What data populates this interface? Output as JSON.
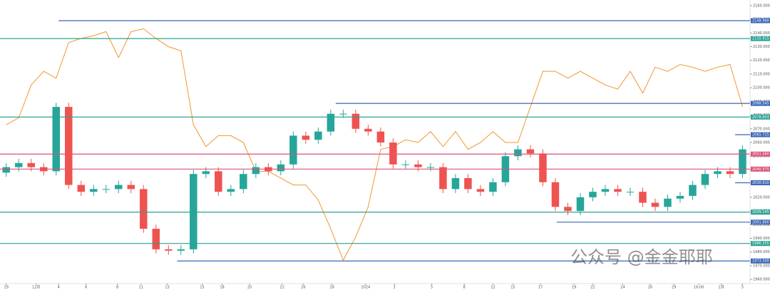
{
  "chart_data": {
    "type": "candlestick",
    "xlim": [
      -0.5,
      59.6
    ],
    "ylim": [
      1958,
      2162
    ],
    "up_color": "#26a69a",
    "down_color": "#ef5350",
    "open": [
      2038,
      2042,
      2045,
      2042,
      2039,
      2086,
      2029,
      2024,
      2026,
      2026,
      2029,
      2026,
      1997,
      1982,
      1981,
      1982,
      2037,
      2039,
      2024,
      2026,
      2037,
      2042,
      2039,
      2044,
      2065,
      2062,
      2068,
      2081,
      2081,
      2070,
      2068,
      2060,
      2044,
      2044,
      2042,
      2042,
      2026,
      2034,
      2026,
      2024,
      2031,
      2050,
      2055,
      2052,
      2031,
      2013,
      2010,
      2020,
      2024,
      2026,
      2024,
      2024,
      2016,
      2013,
      2019,
      2021,
      2029,
      2037,
      2039,
      2037
    ],
    "high": [
      2045,
      2048,
      2048,
      2045,
      2089,
      2089,
      2032,
      2029,
      2029,
      2032,
      2032,
      2029,
      2000,
      1985,
      1985,
      2040,
      2042,
      2042,
      2029,
      2040,
      2045,
      2045,
      2047,
      2068,
      2068,
      2071,
      2084,
      2084,
      2084,
      2073,
      2071,
      2063,
      2047,
      2047,
      2045,
      2045,
      2037,
      2037,
      2029,
      2034,
      2053,
      2058,
      2058,
      2055,
      2034,
      2016,
      2023,
      2027,
      2029,
      2029,
      2027,
      2027,
      2019,
      2022,
      2024,
      2032,
      2040,
      2042,
      2042,
      2058
    ],
    "low": [
      2035,
      2039,
      2039,
      2036,
      2036,
      2026,
      2021,
      2021,
      2023,
      2023,
      2023,
      1994,
      1979,
      1978,
      1978,
      1979,
      2034,
      2021,
      2021,
      2023,
      2034,
      2036,
      2036,
      2041,
      2059,
      2059,
      2065,
      2078,
      2067,
      2065,
      2057,
      2041,
      2041,
      2039,
      2039,
      2023,
      2023,
      2023,
      2021,
      2021,
      2028,
      2047,
      2049,
      2028,
      2010,
      2007,
      2007,
      2017,
      2021,
      2021,
      2021,
      2013,
      2010,
      2010,
      2016,
      2018,
      2026,
      2034,
      2034,
      2034
    ],
    "close": [
      2042,
      2045,
      2042,
      2039,
      2086,
      2029,
      2024,
      2026,
      2026,
      2029,
      2026,
      1997,
      1982,
      1981,
      1982,
      2037,
      2039,
      2024,
      2026,
      2037,
      2042,
      2039,
      2044,
      2065,
      2062,
      2068,
      2081,
      2081,
      2070,
      2068,
      2060,
      2044,
      2044,
      2042,
      2042,
      2026,
      2034,
      2026,
      2024,
      2031,
      2050,
      2055,
      2052,
      2031,
      2013,
      2010,
      2020,
      2024,
      2026,
      2024,
      2024,
      2016,
      2013,
      2019,
      2021,
      2029,
      2037,
      2039,
      2037,
      2055
    ],
    "overlay_color": "#f0962e",
    "overlay_values": [
      2073,
      2078,
      2102,
      2112,
      2107,
      2133,
      2136,
      2138,
      2141,
      2122,
      2141,
      2143,
      2136,
      2130,
      2127,
      2073,
      2057,
      2065,
      2065,
      2060,
      2039,
      2039,
      2034,
      2029,
      2029,
      2018,
      1997,
      1974,
      1991,
      2013,
      2055,
      2057,
      2062,
      2060,
      2068,
      2057,
      2068,
      2055,
      2060,
      2068,
      2060,
      2060,
      2086,
      2112,
      2112,
      2107,
      2112,
      2107,
      2102,
      2099,
      2112,
      2096,
      2115,
      2112,
      2117,
      2115,
      2112,
      2115,
      2117,
      2086
    ],
    "levels": [
      {
        "value": 2148.99,
        "label": "2148.990",
        "color": "#3a66b8",
        "from": 4.2
      },
      {
        "value": 2135.915,
        "label": "2135.915",
        "color": "#2aa393",
        "from": -0.5
      },
      {
        "value": 2088.545,
        "label": "2088.545",
        "color": "#3a66b8",
        "from": 26.4
      },
      {
        "value": 2078.603,
        "label": "2078.603",
        "color": "#2aa393",
        "from": -0.5
      },
      {
        "value": 2065.725,
        "label": "2065.725",
        "color": "#3a66b8",
        "from": 58.4
      },
      {
        "value": 2051.56,
        "label": "2051.560",
        "color": "#d9547a",
        "from": -0.5
      },
      {
        "value": 2040.575,
        "label": "2040.575",
        "color": "#d9547a",
        "from": -0.5
      },
      {
        "value": 2030.61,
        "label": "2030.610",
        "color": "#3a66b8",
        "from": 58.4
      },
      {
        "value": 2009.145,
        "label": "2009.145",
        "color": "#2aa393",
        "from": -0.5
      },
      {
        "value": 2001.8,
        "label": "2001.800",
        "color": "#3a66b8",
        "from": 44.1
      },
      {
        "value": 1986.255,
        "label": "1986.255",
        "color": "#2aa393",
        "from": -0.5
      },
      {
        "value": 1973.5,
        "label": "1973.500",
        "color": "#3a66b8",
        "from": 13.7
      }
    ],
    "yticks": [
      {
        "value": 2160,
        "label": "2160.000"
      },
      {
        "value": 2150,
        "label": "2150.000"
      },
      {
        "value": 2140,
        "label": "2140.000"
      },
      {
        "value": 2130,
        "label": "2130.000"
      },
      {
        "value": 2120,
        "label": "2120.000"
      },
      {
        "value": 2110,
        "label": "2110.000"
      },
      {
        "value": 2100,
        "label": "2100.000"
      },
      {
        "value": 2090,
        "label": "2090.000"
      },
      {
        "value": 2080,
        "label": "2080.000"
      },
      {
        "value": 2070,
        "label": "2070.000"
      },
      {
        "value": 2060,
        "label": "2060.000"
      },
      {
        "value": 2050,
        "label": "2050.000"
      },
      {
        "value": 2040,
        "label": "2040.000"
      },
      {
        "value": 2030,
        "label": "2030.000"
      },
      {
        "value": 2020,
        "label": "2020.000"
      },
      {
        "value": 2010,
        "label": "2010.000"
      },
      {
        "value": 2000,
        "label": "2000.000"
      },
      {
        "value": 1990,
        "label": "1990.000"
      },
      {
        "value": 1980,
        "label": "1980.000"
      },
      {
        "value": 1970,
        "label": "1970.000"
      },
      {
        "value": 1960,
        "label": "1960.000"
      }
    ],
    "xticks": [
      {
        "value": 0,
        "label": "29"
      },
      {
        "value": 2.4,
        "label": "12月"
      },
      {
        "value": 4.2,
        "label": "4"
      },
      {
        "value": 6.4,
        "label": "6"
      },
      {
        "value": 8.9,
        "label": "8"
      },
      {
        "value": 10.8,
        "label": "11"
      },
      {
        "value": 12.9,
        "label": "13"
      },
      {
        "value": 15.7,
        "label": "15"
      },
      {
        "value": 17.3,
        "label": "18"
      },
      {
        "value": 19.5,
        "label": "20"
      },
      {
        "value": 22.1,
        "label": "22"
      },
      {
        "value": 23.8,
        "label": "26"
      },
      {
        "value": 26.1,
        "label": "28"
      },
      {
        "value": 28.8,
        "label": "2024"
      },
      {
        "value": 31.1,
        "label": "3"
      },
      {
        "value": 34.1,
        "label": "5"
      },
      {
        "value": 36.7,
        "label": "8"
      },
      {
        "value": 39,
        "label": "12"
      },
      {
        "value": 40.6,
        "label": "15"
      },
      {
        "value": 42.8,
        "label": "17"
      },
      {
        "value": 45.5,
        "label": "19"
      },
      {
        "value": 47,
        "label": "22"
      },
      {
        "value": 49.4,
        "label": "24"
      },
      {
        "value": 51.6,
        "label": "26"
      },
      {
        "value": 53.5,
        "label": "29"
      },
      {
        "value": 55.5,
        "label": "16:00"
      },
      {
        "value": 57.3,
        "label": "2月"
      },
      {
        "value": 59,
        "label": "5"
      }
    ],
    "watermark": "公众号 @金金耶耶"
  }
}
